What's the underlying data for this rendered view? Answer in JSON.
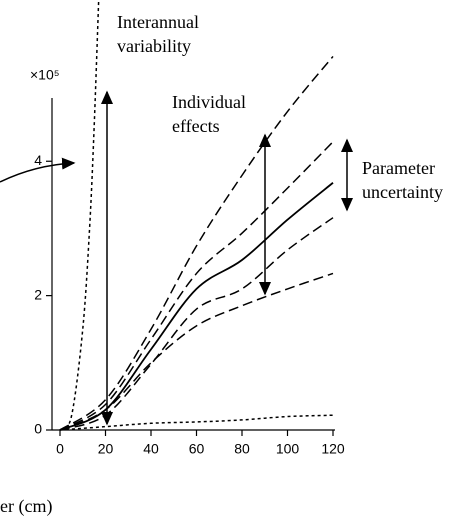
{
  "chart_data": {
    "type": "line",
    "x_label": "er (cm)",
    "y_multiplier": "×10⁵",
    "annotations": [
      [
        "Interannual",
        "variability"
      ],
      [
        "Individual",
        "effects"
      ],
      [
        "Parameter",
        "uncertainty"
      ]
    ],
    "xlim": [
      -26,
      176
    ],
    "ylim": [
      0,
      6.4
    ],
    "xticks": [
      0,
      20,
      40,
      60,
      80,
      100,
      120
    ],
    "yticks": [
      0,
      2,
      4
    ],
    "series": [
      {
        "color": "#000000",
        "style": "dotted",
        "x": [
          0,
          5,
          10,
          13,
          15,
          17
        ],
        "values": [
          0,
          0.2,
          1.5,
          3,
          4.5,
          6.4
        ]
      },
      {
        "color": "#000000",
        "style": "dotted",
        "x": [
          0,
          20,
          40,
          60,
          80,
          100,
          120
        ],
        "values": [
          0,
          0.05,
          0.1,
          0.12,
          0.15,
          0.2,
          0.22
        ]
      },
      {
        "color": "#000000",
        "style": "dashed",
        "x": [
          0,
          20,
          40,
          60,
          80,
          100,
          120
        ],
        "values": [
          0,
          0.45,
          1.5,
          2.74,
          3.79,
          4.74,
          5.56
        ]
      },
      {
        "color": "#000000",
        "style": "dashed",
        "x": [
          0,
          20,
          40,
          60,
          80,
          100,
          120
        ],
        "values": [
          0,
          0.3,
          1.0,
          1.55,
          1.85,
          2.1,
          2.33
        ]
      },
      {
        "color": "#000000",
        "style": "dashed",
        "x": [
          0,
          20,
          40,
          60,
          80,
          100,
          120
        ],
        "values": [
          0,
          0.38,
          1.35,
          2.33,
          2.93,
          3.6,
          4.29
        ]
      },
      {
        "color": "#000000",
        "style": "solid",
        "x": [
          0,
          20,
          40,
          60,
          80,
          100,
          120
        ],
        "values": [
          0,
          0.3,
          1.2,
          2.1,
          2.53,
          3.13,
          3.68
        ]
      },
      {
        "color": "#000000",
        "style": "dashed",
        "x": [
          0,
          20,
          40,
          60,
          80,
          100,
          120
        ],
        "values": [
          0,
          0.22,
          0.98,
          1.8,
          2.1,
          2.68,
          3.16
        ]
      }
    ]
  }
}
